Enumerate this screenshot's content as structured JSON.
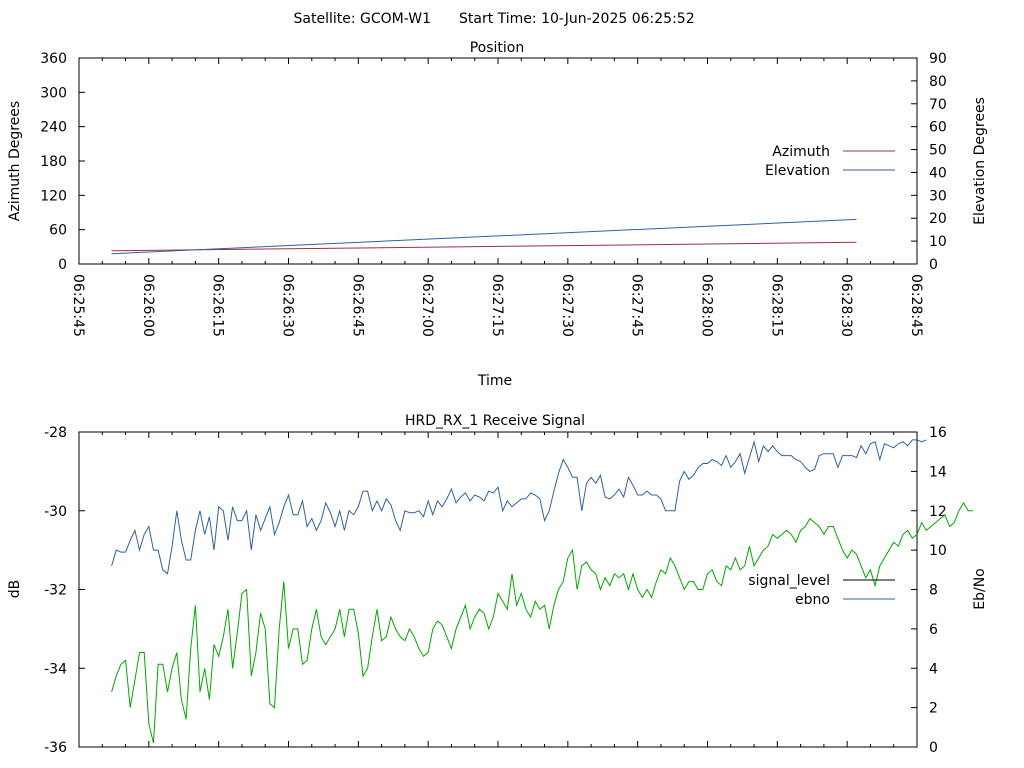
{
  "header": {
    "satellite_label": "Satellite: GCOM-W1",
    "start_time_label": "Start Time: 10-Jun-2025 06:25:52"
  },
  "chart_data": [
    {
      "type": "line",
      "title": "Position",
      "xlabel": "Time",
      "ylabel": "Azimuth Degrees",
      "y2label": "Elevation Degrees",
      "x_ticks": [
        "06:25:45",
        "06:26:00",
        "06:26:15",
        "06:26:30",
        "06:26:45",
        "06:27:00",
        "06:27:15",
        "06:27:30",
        "06:27:45",
        "06:28:00",
        "06:28:15",
        "06:28:30",
        "06:28:45"
      ],
      "xlim_seconds": [
        0,
        180
      ],
      "ylim": [
        0,
        360
      ],
      "y_ticks": [
        0,
        60,
        120,
        180,
        240,
        300,
        360
      ],
      "y2lim": [
        0,
        90
      ],
      "y2_ticks": [
        0,
        10,
        20,
        30,
        40,
        50,
        60,
        70,
        80,
        90
      ],
      "legend_position": "right",
      "grid": false,
      "series": [
        {
          "name": "Azimuth",
          "axis": "y",
          "color": "#a0303a",
          "points": [
            [
              7,
              23
            ],
            [
              167,
              38
            ]
          ]
        },
        {
          "name": "Elevation",
          "axis": "y2",
          "color": "#3060a0",
          "points": [
            [
              7,
              4.5
            ],
            [
              167,
              19.5
            ]
          ]
        }
      ]
    },
    {
      "type": "line",
      "title": "HRD_RX_1 Receive Signal",
      "ylabel": "dB",
      "y2label": "Eb/No",
      "xlim_seconds": [
        0,
        180
      ],
      "ylim": [
        -36,
        -28
      ],
      "y_ticks": [
        -36,
        -34,
        -32,
        -30,
        -28
      ],
      "y2lim": [
        0,
        16
      ],
      "y2_ticks": [
        0,
        2,
        4,
        6,
        8,
        10,
        12,
        14,
        16
      ],
      "legend_position": "right",
      "grid": false,
      "legend": [
        {
          "name": "signal_level",
          "color": "#000000"
        },
        {
          "name": "ebno",
          "color": "#3060a0"
        }
      ],
      "series": [
        {
          "key": "upper",
          "axis": "y2",
          "color": "#3060a0",
          "t_start": 7,
          "t_step": 1,
          "values": [
            9.2,
            10.0,
            9.9,
            9.9,
            10.5,
            11.0,
            10.0,
            10.8,
            11.2,
            10.0,
            10.0,
            9.0,
            8.8,
            10.2,
            12.0,
            10.5,
            9.5,
            9.5,
            11.0,
            12.0,
            10.8,
            11.7,
            10.0,
            12.2,
            12.0,
            10.5,
            12.2,
            11.5,
            11.5,
            12.0,
            10.0,
            11.8,
            11.0,
            11.6,
            12.2,
            10.8,
            11.4,
            12.2,
            12.8,
            11.8,
            11.8,
            12.5,
            11.2,
            11.6,
            11.0,
            11.5,
            12.4,
            11.9,
            11.2,
            12.0,
            11.0,
            12.0,
            11.8,
            12.2,
            13.0,
            13.0,
            12.0,
            12.5,
            12.0,
            12.6,
            12.3,
            11.5,
            11.0,
            12.0,
            11.9,
            11.9,
            12.0,
            11.7,
            12.5,
            11.8,
            12.5,
            12.2,
            12.6,
            13.1,
            12.4,
            12.7,
            12.9,
            12.5,
            12.8,
            12.7,
            12.5,
            13.0,
            12.9,
            13.2,
            12.0,
            12.5,
            12.2,
            12.4,
            12.6,
            12.6,
            12.9,
            12.8,
            12.6,
            11.5,
            12.0,
            13.0,
            13.9,
            14.6,
            14.2,
            13.7,
            13.7,
            12.0,
            13.4,
            13.7,
            13.4,
            13.8,
            12.7,
            12.6,
            12.8,
            13.1,
            12.7,
            13.7,
            13.3,
            12.8,
            12.8,
            13.0,
            12.8,
            12.8,
            12.6,
            12.0,
            12.0,
            12.0,
            13.5,
            14.0,
            13.6,
            13.8,
            14.2,
            14.4,
            14.4,
            14.6,
            14.5,
            14.3,
            14.8,
            14.2,
            14.5,
            14.9,
            13.9,
            14.7,
            15.5,
            14.5,
            15.3,
            15.0,
            15.3,
            15.0,
            14.8,
            14.8,
            14.8,
            14.6,
            14.5,
            14.2,
            14.0,
            14.1,
            14.8,
            14.9,
            14.9,
            14.9,
            14.2,
            14.8,
            14.8,
            14.8,
            14.7,
            15.3,
            14.9,
            15.4,
            15.5,
            14.6,
            15.4,
            15.3,
            15.2,
            15.4,
            15.5,
            15.3,
            15.6,
            15.6,
            15.5,
            15.6
          ]
        },
        {
          "key": "lower",
          "axis": "y",
          "color": "#00aa00",
          "t_start": 7,
          "t_step": 1,
          "values": [
            -34.6,
            -34.2,
            -33.9,
            -33.8,
            -35.0,
            -34.3,
            -33.6,
            -33.6,
            -35.4,
            -35.9,
            -33.9,
            -33.9,
            -34.6,
            -34.0,
            -33.6,
            -34.8,
            -35.3,
            -33.5,
            -32.4,
            -34.6,
            -34.0,
            -34.8,
            -33.4,
            -33.7,
            -33.2,
            -32.5,
            -34.0,
            -33.1,
            -32.1,
            -32.0,
            -34.2,
            -33.6,
            -32.6,
            -33.0,
            -34.9,
            -35.0,
            -33.0,
            -31.8,
            -33.5,
            -33.0,
            -33.0,
            -33.9,
            -33.8,
            -33.0,
            -32.5,
            -33.2,
            -33.4,
            -33.2,
            -33.0,
            -32.5,
            -33.2,
            -32.5,
            -32.5,
            -33.1,
            -34.2,
            -34.0,
            -33.2,
            -32.5,
            -33.3,
            -33.2,
            -32.7,
            -33.0,
            -33.2,
            -33.3,
            -33.0,
            -33.2,
            -33.5,
            -33.7,
            -33.6,
            -33.0,
            -32.8,
            -32.9,
            -33.2,
            -33.5,
            -33.0,
            -32.7,
            -32.4,
            -33.0,
            -32.7,
            -32.5,
            -32.6,
            -33.0,
            -32.7,
            -32.1,
            -32.3,
            -32.5,
            -31.6,
            -32.4,
            -32.1,
            -32.5,
            -32.7,
            -32.3,
            -32.5,
            -32.4,
            -33.0,
            -32.4,
            -32.0,
            -31.8,
            -31.2,
            -31.0,
            -32.0,
            -31.4,
            -31.3,
            -31.5,
            -31.6,
            -32.0,
            -31.7,
            -31.9,
            -31.6,
            -31.7,
            -31.6,
            -32.0,
            -31.6,
            -32.0,
            -32.2,
            -32.0,
            -32.2,
            -31.8,
            -31.5,
            -31.6,
            -31.2,
            -31.4,
            -31.7,
            -32.0,
            -31.8,
            -31.8,
            -32.0,
            -32.0,
            -31.6,
            -31.5,
            -31.8,
            -31.9,
            -31.4,
            -31.5,
            -31.2,
            -31.5,
            -31.4,
            -30.9,
            -31.4,
            -31.2,
            -31.0,
            -30.9,
            -30.6,
            -30.7,
            -30.6,
            -30.5,
            -30.6,
            -30.8,
            -30.5,
            -30.4,
            -30.2,
            -30.3,
            -30.4,
            -30.6,
            -30.4,
            -30.4,
            -30.7,
            -31.0,
            -31.2,
            -31.0,
            -31.1,
            -31.4,
            -31.7,
            -31.5,
            -31.9,
            -31.4,
            -31.2,
            -31.0,
            -30.8,
            -30.9,
            -30.6,
            -30.5,
            -30.7,
            -30.6,
            -30.3,
            -30.5,
            -30.4,
            -30.3,
            -30.2,
            -30.1,
            -30.4,
            -30.3,
            -30.0,
            -29.8,
            -30.0,
            -30.0
          ]
        }
      ]
    }
  ]
}
